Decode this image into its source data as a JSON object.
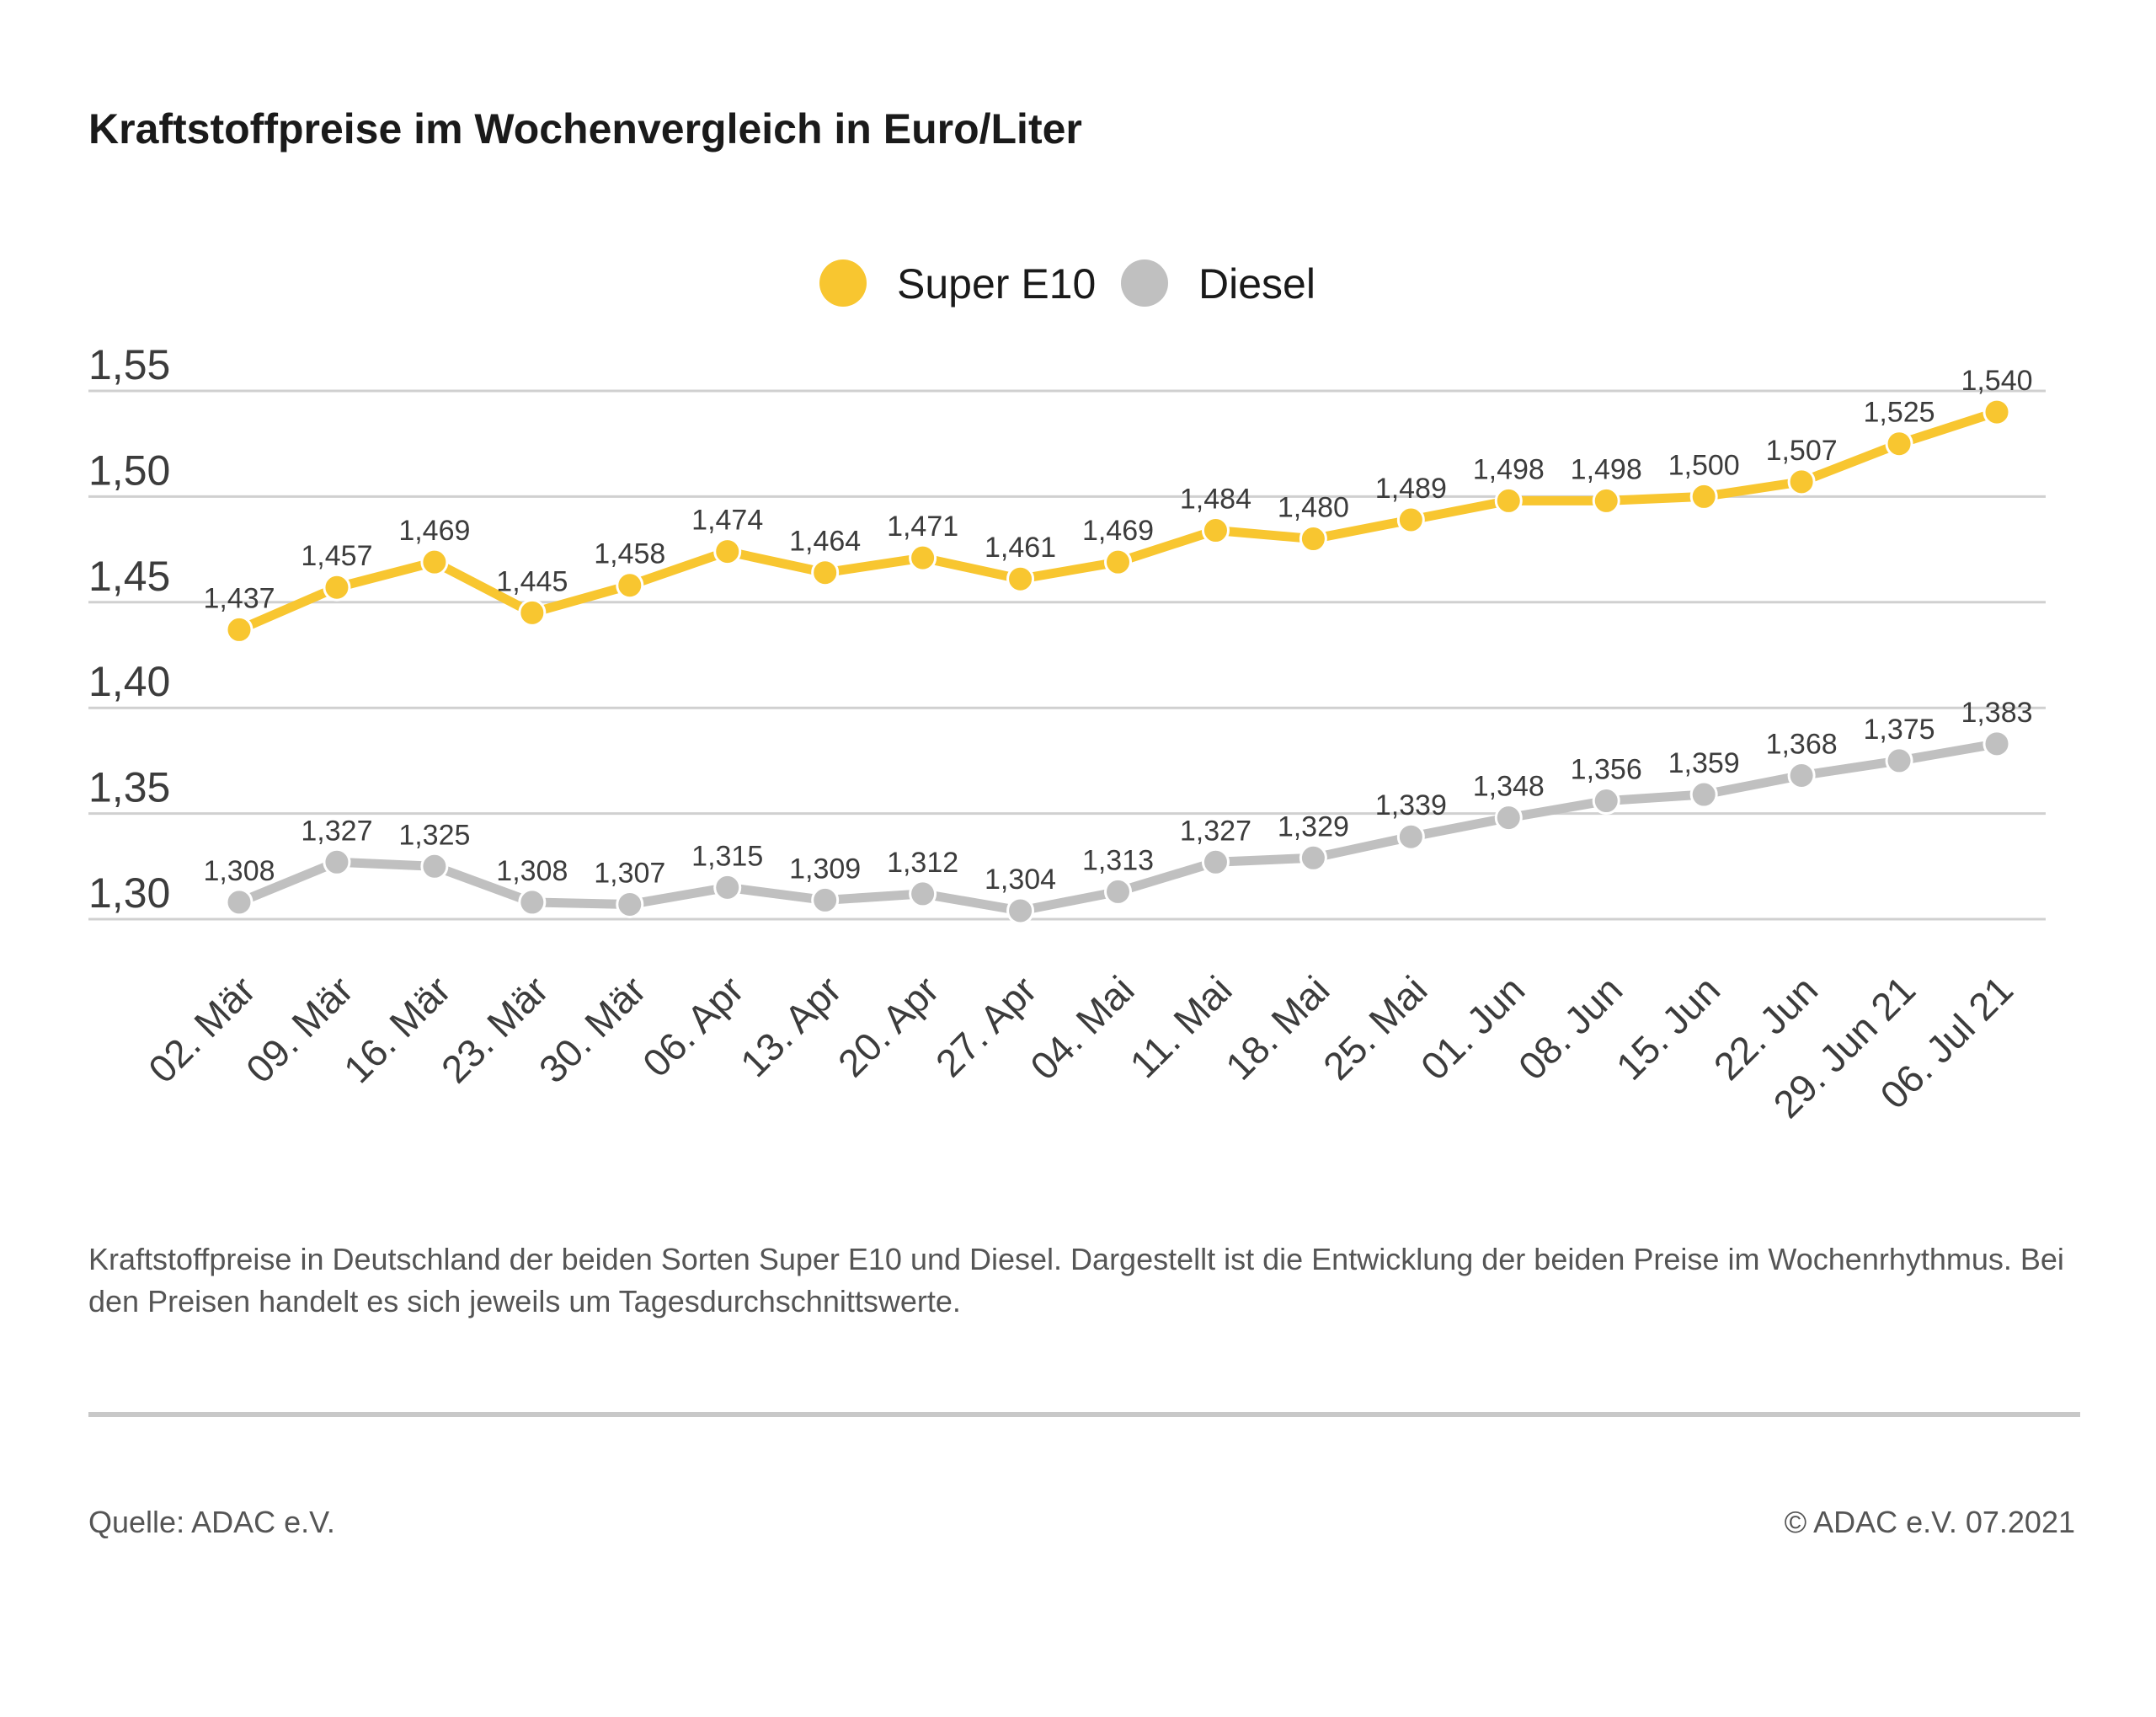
{
  "chart_data": {
    "type": "line",
    "title": "Kraftstoffpreise im Wochenvergleich in Euro/Liter",
    "categories": [
      "02. Mär",
      "09. Mär",
      "16. Mär",
      "23. Mär",
      "30. Mär",
      "06. Apr",
      "13. Apr",
      "20. Apr",
      "27. Apr",
      "04. Mai",
      "11. Mai",
      "18. Mai",
      "25. Mai",
      "01. Jun",
      "08. Jun",
      "15. Jun",
      "22. Jun",
      "29. Jun 21",
      "06. Jul 21"
    ],
    "series": [
      {
        "name": "Super E10",
        "color": "#f8c630",
        "values": [
          1.437,
          1.457,
          1.469,
          1.445,
          1.458,
          1.474,
          1.464,
          1.471,
          1.461,
          1.469,
          1.484,
          1.48,
          1.489,
          1.498,
          1.498,
          1.5,
          1.507,
          1.525,
          1.54
        ],
        "labels": [
          "1,437",
          "1,457",
          "1,469",
          "1,445",
          "1,458",
          "1,474",
          "1,464",
          "1,471",
          "1,461",
          "1,469",
          "1,484",
          "1,480",
          "1,489",
          "1,498",
          "1,498",
          "1,500",
          "1,507",
          "1,525",
          "1,540"
        ]
      },
      {
        "name": "Diesel",
        "color": "#c0c0c0",
        "values": [
          1.308,
          1.327,
          1.325,
          1.308,
          1.307,
          1.315,
          1.309,
          1.312,
          1.304,
          1.313,
          1.327,
          1.329,
          1.339,
          1.348,
          1.356,
          1.359,
          1.368,
          1.375,
          1.383
        ],
        "labels": [
          "1,308",
          "1,327",
          "1,325",
          "1,308",
          "1,307",
          "1,315",
          "1,309",
          "1,312",
          "1,304",
          "1,313",
          "1,327",
          "1,329",
          "1,339",
          "1,348",
          "1,356",
          "1,359",
          "1,368",
          "1,375",
          "1,383"
        ]
      }
    ],
    "yticks": [
      1.3,
      1.35,
      1.4,
      1.45,
      1.5,
      1.55
    ],
    "ytick_labels": [
      "1,30",
      "1,35",
      "1,40",
      "1,45",
      "1,50",
      "1,55"
    ],
    "ylim": [
      1.3,
      1.55
    ],
    "grid": true,
    "legend_placement": "top-center",
    "xlabel": "",
    "ylabel": ""
  },
  "footer": {
    "note": "Kraftstoffpreise in Deutschland der beiden Sorten Super E10 und Diesel. Dargestellt ist die Entwicklung der beiden Preise im Wochenrhythmus. Bei den Preisen handelt es sich jeweils um Tagesdurchschnittswerte.",
    "source": "Quelle: ADAC e.V.",
    "copyright": "© ADAC e.V. 07.2021"
  }
}
